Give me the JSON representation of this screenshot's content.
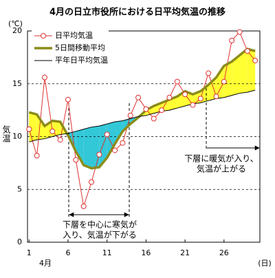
{
  "chart_data": {
    "type": "line",
    "title": "4月の日立市役所における日平均気温の推移",
    "y_label": "気温",
    "y_unit": "(℃)",
    "x_label": "(日)",
    "x_sublabel": "4月",
    "x": [
      1,
      2,
      3,
      4,
      5,
      6,
      7,
      8,
      9,
      10,
      11,
      12,
      13,
      14,
      15,
      16,
      17,
      18,
      19,
      20,
      21,
      22,
      23,
      24,
      25,
      26,
      27,
      28,
      29,
      30
    ],
    "xlim": [
      0.8,
      30.6
    ],
    "xticks": [
      1,
      6,
      11,
      16,
      21,
      26
    ],
    "ylim": [
      0,
      20
    ],
    "yticks": [
      0,
      5,
      10,
      15,
      20
    ],
    "grid": true,
    "legend": "upper left",
    "fill_above_color": "#ffff33",
    "fill_below_color": "#33c8d8",
    "series": [
      {
        "name": "日平均気温",
        "color": "#e03030",
        "marker": "o",
        "values": [
          10.7,
          8.2,
          15.6,
          10.5,
          9.7,
          13.5,
          7.8,
          3.4,
          5.7,
          8.3,
          10.2,
          8.7,
          9.4,
          12.0,
          13.7,
          12.6,
          11.7,
          12.5,
          13.7,
          15.2,
          14.0,
          13.0,
          13.6,
          16.0,
          13.8,
          15.2,
          19.1,
          19.9,
          18.1,
          17.2
        ]
      },
      {
        "name": "5日間移動平均",
        "color": "#8c8c1a",
        "values": [
          12.3,
          12.1,
          11.0,
          11.5,
          11.4,
          10.1,
          8.6,
          7.3,
          7.0,
          7.1,
          8.0,
          9.3,
          10.5,
          11.2,
          11.8,
          12.5,
          12.9,
          13.2,
          13.5,
          13.8,
          14.3,
          14.0,
          14.3,
          14.9,
          15.6,
          16.7,
          17.1,
          17.7,
          18.3,
          18.1
        ]
      },
      {
        "name": "平年日平均気温",
        "color": "#000000",
        "values": [
          9.5,
          9.7,
          9.8,
          10.0,
          10.2,
          10.3,
          10.5,
          10.7,
          10.9,
          11.0,
          11.2,
          11.4,
          11.5,
          11.7,
          11.9,
          12.0,
          12.2,
          12.4,
          12.5,
          12.7,
          12.9,
          13.1,
          13.2,
          13.4,
          13.6,
          13.7,
          13.9,
          14.1,
          14.2,
          14.4
        ]
      }
    ],
    "annotations": [
      {
        "lines": [
          "下層に暖気が入り、",
          "気温が上がる"
        ]
      },
      {
        "lines": [
          "下層を中心に寒気が",
          "入り、気温が下がる"
        ]
      }
    ]
  }
}
